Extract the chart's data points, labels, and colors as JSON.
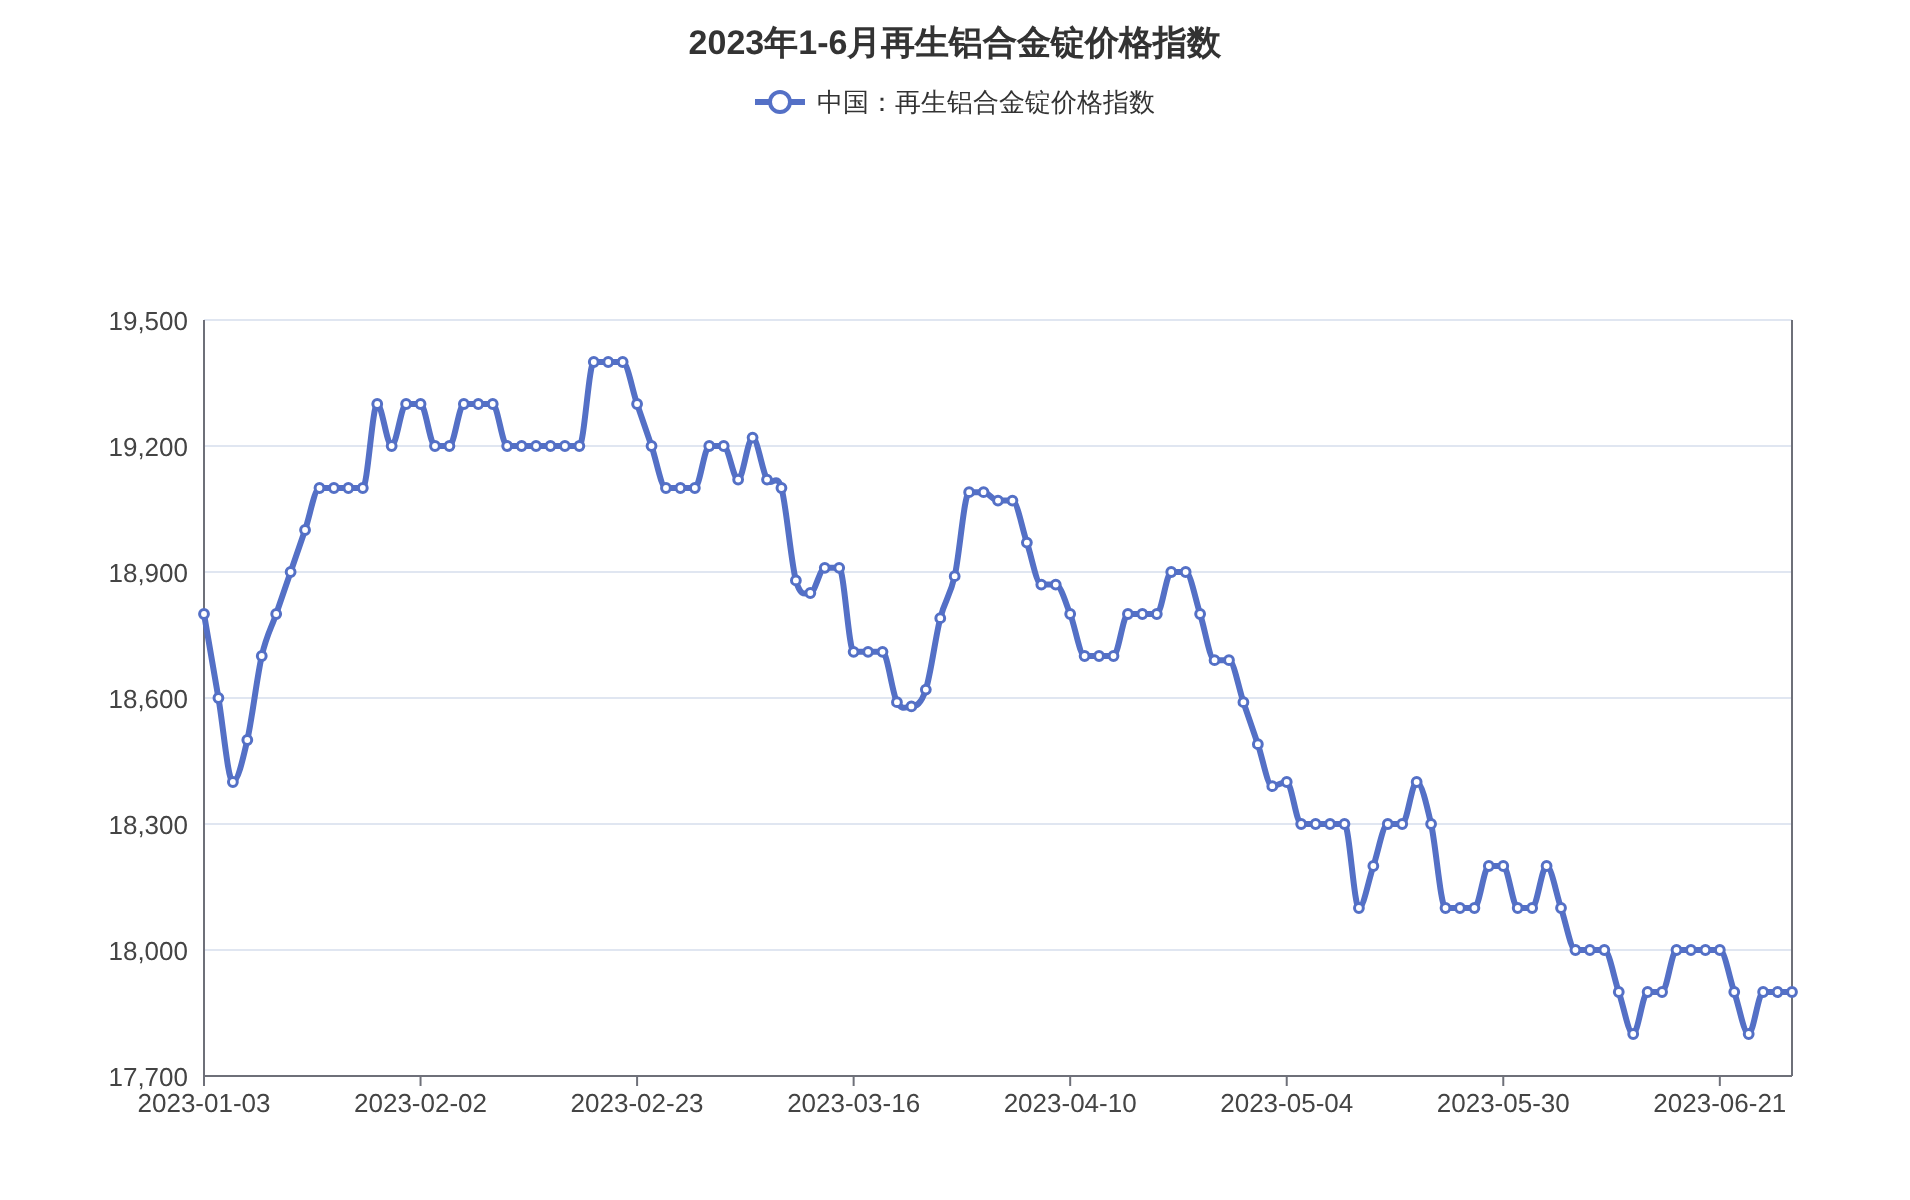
{
  "chart_data": {
    "type": "line",
    "title": "2023年1-6月再生铝合金锭价格指数",
    "categories": [
      "2023-01-03",
      null,
      null,
      null,
      null,
      null,
      null,
      null,
      null,
      null,
      null,
      null,
      null,
      null,
      null,
      "2023-02-02",
      null,
      null,
      null,
      null,
      null,
      null,
      null,
      null,
      null,
      null,
      null,
      null,
      null,
      null,
      "2023-02-23",
      null,
      null,
      null,
      null,
      null,
      null,
      null,
      null,
      null,
      null,
      null,
      null,
      null,
      null,
      "2023-03-16",
      null,
      null,
      null,
      null,
      null,
      null,
      null,
      null,
      null,
      null,
      null,
      null,
      null,
      null,
      "2023-04-10",
      null,
      null,
      null,
      null,
      null,
      null,
      null,
      null,
      null,
      null,
      null,
      null,
      null,
      null,
      "2023-05-04",
      null,
      null,
      null,
      null,
      null,
      null,
      null,
      null,
      null,
      null,
      null,
      null,
      null,
      null,
      "2023-05-30",
      null,
      null,
      null,
      null,
      null,
      null,
      null,
      null,
      null,
      null,
      null,
      null,
      null,
      null,
      "2023-06-21",
      null,
      null,
      null,
      null,
      null
    ],
    "series": [
      {
        "name": "中国：再生铝合金锭价格指数",
        "color": "#5470c6",
        "values": [
          18800,
          18600,
          18400,
          18500,
          18700,
          18800,
          18900,
          19000,
          19100,
          19100,
          19100,
          19100,
          19300,
          19200,
          19300,
          19300,
          19200,
          19200,
          19300,
          19300,
          19300,
          19200,
          19200,
          19200,
          19200,
          19200,
          19200,
          19400,
          19400,
          19400,
          19300,
          19200,
          19100,
          19100,
          19100,
          19200,
          19200,
          19120,
          19220,
          19120,
          19100,
          18880,
          18850,
          18910,
          18910,
          18710,
          18710,
          18710,
          18590,
          18580,
          18620,
          18790,
          18890,
          19090,
          19090,
          19070,
          19070,
          18970,
          18870,
          18870,
          18800,
          18700,
          18700,
          18700,
          18800,
          18800,
          18800,
          18900,
          18900,
          18800,
          18690,
          18690,
          18590,
          18490,
          18390,
          18400,
          18300,
          18300,
          18300,
          18300,
          18100,
          18200,
          18300,
          18300,
          18400,
          18300,
          18100,
          18100,
          18100,
          18200,
          18200,
          18100,
          18100,
          18200,
          18100,
          18000,
          18000,
          18000,
          17900,
          17800,
          17900,
          17900,
          18000,
          18000,
          18000,
          18000,
          17900,
          17800,
          17900,
          17900,
          17900
        ]
      }
    ],
    "ylim": [
      17700,
      19500
    ],
    "yticks": [
      {
        "value": 17700,
        "label": "17,700"
      },
      {
        "value": 18000,
        "label": "18,000"
      },
      {
        "value": 18300,
        "label": "18,300"
      },
      {
        "value": 18600,
        "label": "18,600"
      },
      {
        "value": 18900,
        "label": "18,900"
      },
      {
        "value": 19200,
        "label": "19,200"
      },
      {
        "value": 19500,
        "label": "19,500"
      }
    ],
    "grid": "y",
    "legend": "top",
    "marker": "circle",
    "line_style": "solid"
  }
}
